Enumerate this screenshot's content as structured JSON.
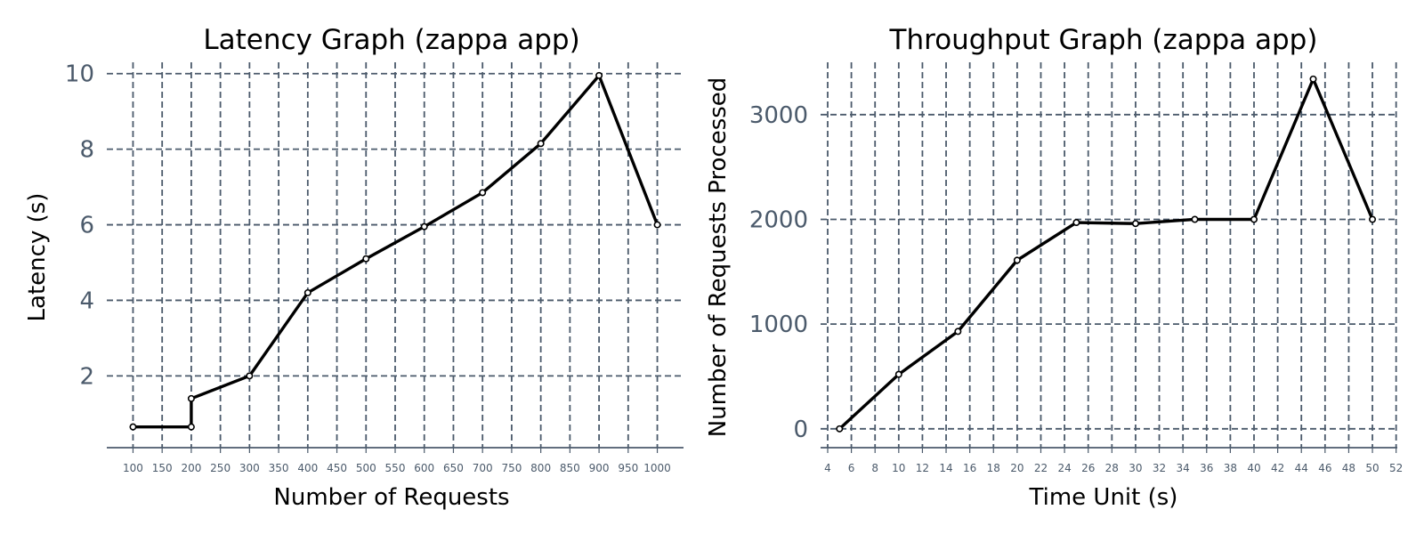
{
  "colors": {
    "line": "#000000",
    "grid": "#4b5a6b",
    "tick_text": "#4b5a6b",
    "marker_fill": "#ffffff",
    "background": "#ffffff"
  },
  "chart_data": [
    {
      "type": "line",
      "title": "Latency Graph (zappa app)",
      "xlabel": "Number of Requests",
      "ylabel": "Latency (s)",
      "xlim": [
        55,
        1045
      ],
      "ylim": [
        0.1,
        10.3
      ],
      "xticks": [
        100,
        150,
        200,
        250,
        300,
        350,
        400,
        450,
        500,
        550,
        600,
        650,
        700,
        750,
        800,
        850,
        900,
        950,
        1000
      ],
      "yticks": [
        2,
        4,
        6,
        8,
        10
      ],
      "grid": true,
      "grid_style": "dashed",
      "legend": "none",
      "series": [
        {
          "x": [
            100,
            200,
            200,
            300,
            400,
            500,
            600,
            700,
            800,
            900,
            1000
          ],
          "y": [
            0.65,
            0.65,
            1.4,
            2.0,
            4.2,
            5.1,
            5.95,
            6.85,
            8.15,
            9.95,
            6.0
          ]
        }
      ]
    },
    {
      "type": "line",
      "title": "Throughput Graph (zappa app)",
      "xlabel": "Time Unit (s)",
      "ylabel": "Number of Requests Processed",
      "xlim": [
        3.4,
        52.1
      ],
      "ylim": [
        -180,
        3500
      ],
      "xticks": [
        4,
        6,
        8,
        10,
        12,
        14,
        16,
        18,
        20,
        22,
        24,
        26,
        28,
        30,
        32,
        34,
        36,
        38,
        40,
        42,
        44,
        46,
        48,
        50,
        52
      ],
      "yticks": [
        0,
        1000,
        2000,
        3000
      ],
      "grid": true,
      "grid_style": "dashed",
      "legend": "none",
      "series": [
        {
          "x": [
            5,
            10,
            15,
            20,
            25,
            30,
            35,
            40,
            45,
            50
          ],
          "y": [
            0,
            520,
            930,
            1610,
            1970,
            1960,
            2000,
            2000,
            3340,
            2000
          ]
        }
      ]
    }
  ]
}
